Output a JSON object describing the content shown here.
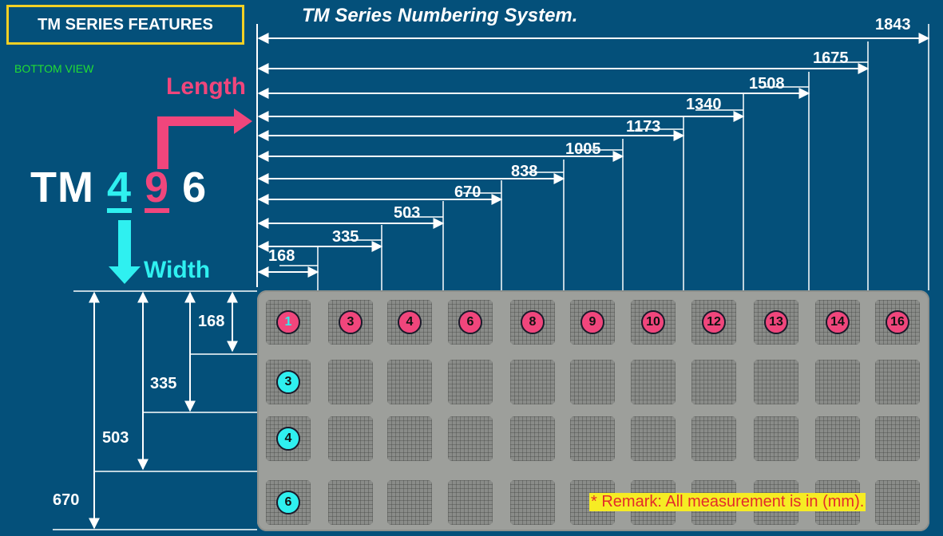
{
  "header": {
    "badge": "TM SERIES FEATURES",
    "title": "TM Series Numbering System.",
    "view": "BOTTOM VIEW"
  },
  "model_code": {
    "prefix": "TM",
    "width_digit": "4",
    "length_digit": "9",
    "suffix": "6"
  },
  "labels": {
    "length": "Length",
    "width": "Width"
  },
  "length_dimensions": [
    "168",
    "335",
    "503",
    "670",
    "838",
    "1005",
    "1173",
    "1340",
    "1508",
    "1675",
    "1843"
  ],
  "width_dimensions": [
    "168",
    "335",
    "503",
    "670"
  ],
  "panel": {
    "column_numbers": [
      "1",
      "3",
      "4",
      "6",
      "8",
      "9",
      "10",
      "12",
      "13",
      "14",
      "16"
    ],
    "row_numbers": [
      "3",
      "4",
      "6"
    ]
  },
  "remark": "* Remark: All measurement is in (mm).",
  "colors": {
    "background": "#04507a",
    "length_accent": "#f0467c",
    "width_accent": "#2ff0f0",
    "title_border": "#f2d024",
    "view_text": "#22dd33"
  }
}
